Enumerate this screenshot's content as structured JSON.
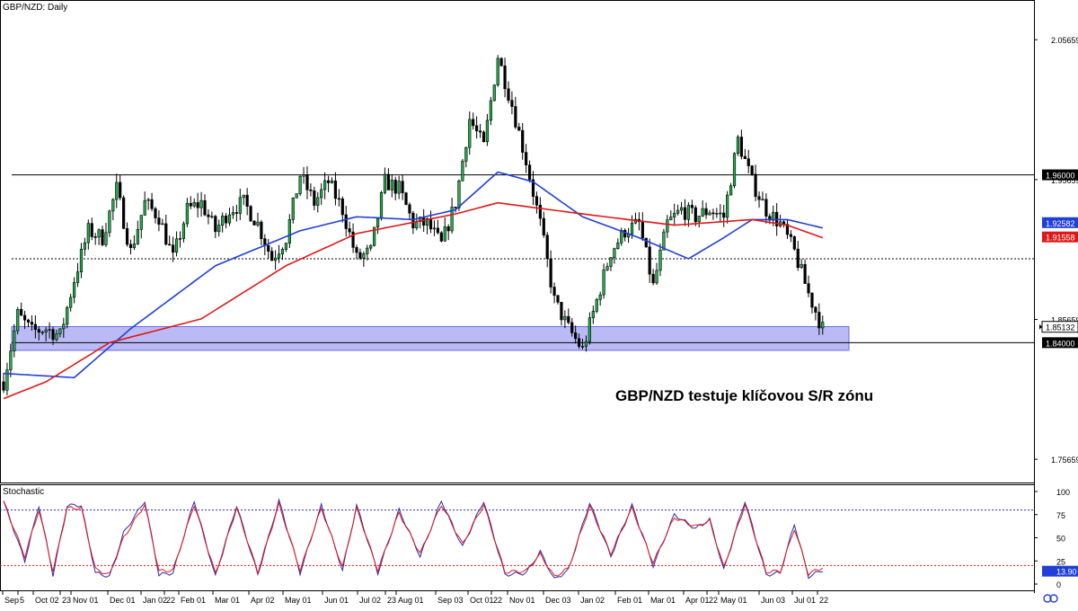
{
  "chart_data": [
    {
      "type": "candlestick",
      "title": "GBP/NZD: Daily",
      "symbol": "GBP/NZD",
      "timeframe": "Daily",
      "annotation": "GBP/NZD testuje klíčovou S/R zónu",
      "y_ticks": [
        "2.05659",
        "1.95659",
        "1.85659",
        "1.75659"
      ],
      "ylim": [
        1.74,
        2.085
      ],
      "x_ticks": [
        "Sep",
        "5",
        "Oct 02",
        "23",
        "Nov 01",
        "Dec 01",
        "Jan 02",
        "22",
        "Feb 01",
        "Mar 01",
        "Apr 02",
        "May 01",
        "Jun 01",
        "Jul 02",
        "23",
        "Aug 01",
        "Sep 03",
        "Oct 01",
        "22",
        "Nov 01",
        "Dec 03",
        "Jan 02",
        "Feb 01",
        "Mar 01",
        "Apr 01",
        "22",
        "May 01",
        "Jun 03",
        "Jul 01",
        "22"
      ],
      "levels": [
        {
          "value": 1.96,
          "label": "1.96000",
          "style": "solid",
          "color": "#000000"
        },
        {
          "value": 1.9,
          "label": "",
          "style": "dotted",
          "color": "#000000"
        },
        {
          "value": 1.84,
          "label": "1.84000",
          "style": "solid",
          "color": "#000000"
        }
      ],
      "zone": {
        "from": 1.8345,
        "to": 1.8515,
        "color": "#8c8cf0"
      },
      "price_labels": [
        {
          "value": 1.92582,
          "label": "1.92582",
          "color": "#1f3fd8"
        },
        {
          "value": 1.91558,
          "label": "1.91558",
          "color": "#e01818"
        },
        {
          "value": 1.85132,
          "label": "1.85132",
          "color": "#000000"
        }
      ],
      "price_anchors": [
        [
          0,
          1.812
        ],
        [
          4,
          1.86
        ],
        [
          8,
          1.848
        ],
        [
          12,
          1.85
        ],
        [
          16,
          1.845
        ],
        [
          20,
          1.885
        ],
        [
          24,
          1.92
        ],
        [
          28,
          1.915
        ],
        [
          32,
          1.95
        ],
        [
          36,
          1.905
        ],
        [
          40,
          1.94
        ],
        [
          44,
          1.93
        ],
        [
          48,
          1.9
        ],
        [
          52,
          1.935
        ],
        [
          56,
          1.94
        ],
        [
          60,
          1.92
        ],
        [
          64,
          1.935
        ],
        [
          68,
          1.94
        ],
        [
          72,
          1.925
        ],
        [
          76,
          1.9
        ],
        [
          80,
          1.915
        ],
        [
          84,
          1.96
        ],
        [
          88,
          1.94
        ],
        [
          92,
          1.955
        ],
        [
          96,
          1.935
        ],
        [
          100,
          1.9
        ],
        [
          104,
          1.905
        ],
        [
          108,
          1.955
        ],
        [
          112,
          1.95
        ],
        [
          116,
          1.925
        ],
        [
          120,
          1.925
        ],
        [
          124,
          1.91
        ],
        [
          128,
          1.94
        ],
        [
          132,
          2.0
        ],
        [
          136,
          1.98
        ],
        [
          140,
          2.045
        ],
        [
          144,
          2.01
        ],
        [
          148,
          1.97
        ],
        [
          152,
          1.925
        ],
        [
          156,
          1.87
        ],
        [
          160,
          1.85
        ],
        [
          164,
          1.835
        ],
        [
          168,
          1.87
        ],
        [
          172,
          1.905
        ],
        [
          176,
          1.92
        ],
        [
          180,
          1.925
        ],
        [
          184,
          1.88
        ],
        [
          188,
          1.925
        ],
        [
          192,
          1.935
        ],
        [
          196,
          1.93
        ],
        [
          200,
          1.935
        ],
        [
          204,
          1.93
        ],
        [
          208,
          1.985
        ],
        [
          212,
          1.955
        ],
        [
          216,
          1.935
        ],
        [
          220,
          1.925
        ],
        [
          224,
          1.905
        ],
        [
          228,
          1.875
        ],
        [
          232,
          1.85
        ]
      ],
      "series": [
        {
          "name": "",
          "type": "moving-average",
          "color": "#1f3fd8",
          "anchors": [
            [
              0,
              1.818
            ],
            [
              20,
              1.815
            ],
            [
              36,
              1.85
            ],
            [
              60,
              1.895
            ],
            [
              84,
              1.92
            ],
            [
              100,
              1.93
            ],
            [
              116,
              1.928
            ],
            [
              128,
              1.935
            ],
            [
              140,
              1.962
            ],
            [
              150,
              1.955
            ],
            [
              164,
              1.93
            ],
            [
              180,
              1.915
            ],
            [
              194,
              1.9
            ],
            [
              204,
              1.915
            ],
            [
              212,
              1.928
            ],
            [
              222,
              1.928
            ],
            [
              232,
              1.922
            ]
          ]
        },
        {
          "name": "",
          "type": "moving-average",
          "color": "#e01818",
          "anchors": [
            [
              0,
              1.8
            ],
            [
              12,
              1.812
            ],
            [
              30,
              1.84
            ],
            [
              56,
              1.857
            ],
            [
              80,
              1.895
            ],
            [
              100,
              1.918
            ],
            [
              128,
              1.932
            ],
            [
              140,
              1.94
            ],
            [
              164,
              1.932
            ],
            [
              190,
              1.924
            ],
            [
              212,
              1.928
            ],
            [
              222,
              1.924
            ],
            [
              232,
              1.915
            ]
          ]
        }
      ]
    },
    {
      "type": "line",
      "title": "Stochastic",
      "y_ticks": [
        "100",
        "75",
        "50",
        "25",
        "0"
      ],
      "ylim": [
        0,
        100
      ],
      "levels": [
        {
          "value": 80,
          "color": "#2a2ab0"
        },
        {
          "value": 20,
          "color": "#e01818"
        }
      ],
      "value_label": "13.90",
      "value_label_color": "#1f3fd8",
      "series": [
        {
          "name": "",
          "color": "#2a2ab0",
          "anchors": [
            [
              0,
              90
            ],
            [
              6,
              25
            ],
            [
              10,
              85
            ],
            [
              14,
              10
            ],
            [
              18,
              85
            ],
            [
              22,
              85
            ],
            [
              26,
              12
            ],
            [
              30,
              8
            ],
            [
              34,
              55
            ],
            [
              40,
              90
            ],
            [
              44,
              10
            ],
            [
              48,
              12
            ],
            [
              54,
              90
            ],
            [
              60,
              8
            ],
            [
              66,
              85
            ],
            [
              72,
              10
            ],
            [
              78,
              90
            ],
            [
              84,
              12
            ],
            [
              90,
              85
            ],
            [
              96,
              15
            ],
            [
              100,
              85
            ],
            [
              106,
              12
            ],
            [
              112,
              80
            ],
            [
              118,
              30
            ],
            [
              124,
              90
            ],
            [
              130,
              40
            ],
            [
              136,
              90
            ],
            [
              142,
              10
            ],
            [
              148,
              12
            ],
            [
              152,
              35
            ],
            [
              156,
              5
            ],
            [
              160,
              15
            ],
            [
              166,
              88
            ],
            [
              172,
              30
            ],
            [
              178,
              85
            ],
            [
              184,
              20
            ],
            [
              190,
              75
            ],
            [
              196,
              60
            ],
            [
              200,
              70
            ],
            [
              204,
              15
            ],
            [
              210,
              90
            ],
            [
              216,
              10
            ],
            [
              220,
              12
            ],
            [
              224,
              65
            ],
            [
              228,
              8
            ],
            [
              232,
              15
            ]
          ]
        },
        {
          "name": "",
          "color": "#e01818",
          "anchors": [
            [
              0,
              88
            ],
            [
              6,
              30
            ],
            [
              10,
              80
            ],
            [
              14,
              14
            ],
            [
              18,
              82
            ],
            [
              22,
              82
            ],
            [
              26,
              16
            ],
            [
              30,
              10
            ],
            [
              34,
              50
            ],
            [
              40,
              86
            ],
            [
              44,
              14
            ],
            [
              48,
              15
            ],
            [
              54,
              86
            ],
            [
              60,
              11
            ],
            [
              66,
              82
            ],
            [
              72,
              13
            ],
            [
              78,
              86
            ],
            [
              84,
              15
            ],
            [
              90,
              82
            ],
            [
              96,
              18
            ],
            [
              100,
              82
            ],
            [
              106,
              15
            ],
            [
              112,
              77
            ],
            [
              118,
              33
            ],
            [
              124,
              86
            ],
            [
              130,
              43
            ],
            [
              136,
              86
            ],
            [
              142,
              13
            ],
            [
              148,
              14
            ],
            [
              152,
              32
            ],
            [
              156,
              8
            ],
            [
              160,
              17
            ],
            [
              166,
              84
            ],
            [
              172,
              33
            ],
            [
              178,
              82
            ],
            [
              184,
              23
            ],
            [
              190,
              72
            ],
            [
              196,
              62
            ],
            [
              200,
              68
            ],
            [
              204,
              18
            ],
            [
              210,
              86
            ],
            [
              216,
              13
            ],
            [
              220,
              14
            ],
            [
              224,
              60
            ],
            [
              228,
              11
            ],
            [
              232,
              18
            ]
          ]
        }
      ]
    }
  ]
}
